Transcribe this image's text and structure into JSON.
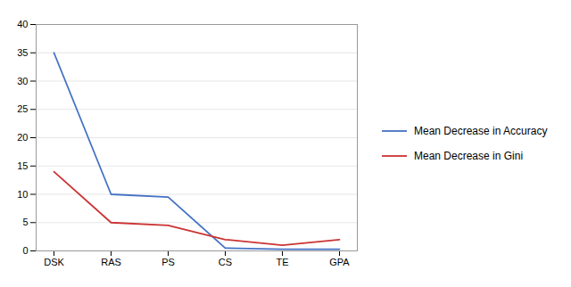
{
  "chart_data": {
    "type": "line",
    "categories": [
      "DSK",
      "RAS",
      "PS",
      "CS",
      "TE",
      "GPA"
    ],
    "series": [
      {
        "name": "Mean Decrease in Accuracy",
        "color": "#4472C4",
        "values": [
          35,
          10,
          9.5,
          0.5,
          0.3,
          0.3
        ]
      },
      {
        "name": "Mean Decrease in Gini",
        "color": "#CC3333",
        "values": [
          14,
          5,
          4.5,
          2,
          1,
          2
        ]
      }
    ],
    "ylim": [
      0,
      40
    ],
    "yticks": [
      0,
      5,
      10,
      15,
      20,
      25,
      30,
      35,
      40
    ],
    "grid": true,
    "legend": "right"
  }
}
